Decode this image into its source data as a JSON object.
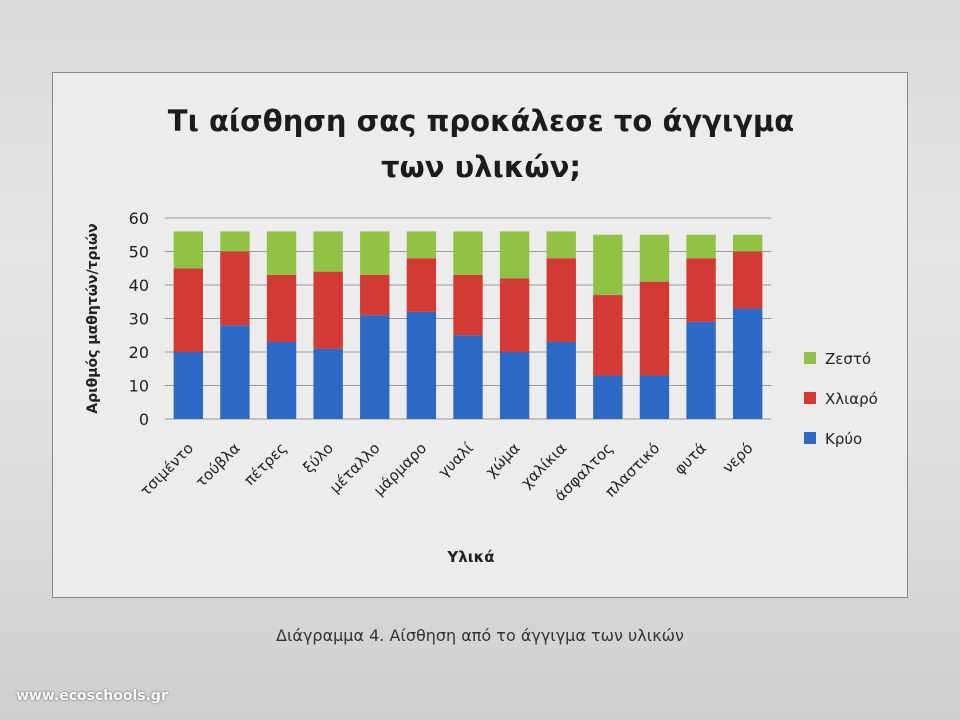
{
  "chart_data": {
    "type": "bar",
    "stacked": true,
    "title_line1": "Τι αίσθηση σας προκάλεσε το άγγιγμα",
    "title_line2": "των υλικών;",
    "xlabel": "Υλικά",
    "ylabel": "Αριθμός μαθητών/τριών",
    "ylim": [
      0,
      60
    ],
    "yticks": [
      0,
      10,
      20,
      30,
      40,
      50,
      60
    ],
    "grid": true,
    "legend_position": "right",
    "categories": [
      "τσιμέντο",
      "τούβλα",
      "πέτρες",
      "ξύλο",
      "μέταλλο",
      "μάρμαρο",
      "γυαλί",
      "χώμα",
      "χαλίκια",
      "άσφαλτος",
      "πλαστικό",
      "φυτά",
      "νερό"
    ],
    "series": [
      {
        "name": "Κρύο",
        "color": "#2d68c4",
        "values": [
          20,
          28,
          23,
          21,
          31,
          32,
          25,
          20,
          23,
          13,
          13,
          29,
          33
        ]
      },
      {
        "name": "Χλιαρό",
        "color": "#d23a33",
        "values": [
          25,
          22,
          20,
          23,
          12,
          16,
          18,
          22,
          25,
          24,
          28,
          19,
          17
        ]
      },
      {
        "name": "Ζεστό",
        "color": "#8fc245",
        "values": [
          11,
          6,
          13,
          12,
          13,
          8,
          13,
          14,
          8,
          18,
          14,
          7,
          5
        ]
      }
    ]
  },
  "caption": "Διάγραμμα 4. Αίσθηση από το άγγιγμα των υλικών",
  "watermark": "www.ecoschools.gr"
}
